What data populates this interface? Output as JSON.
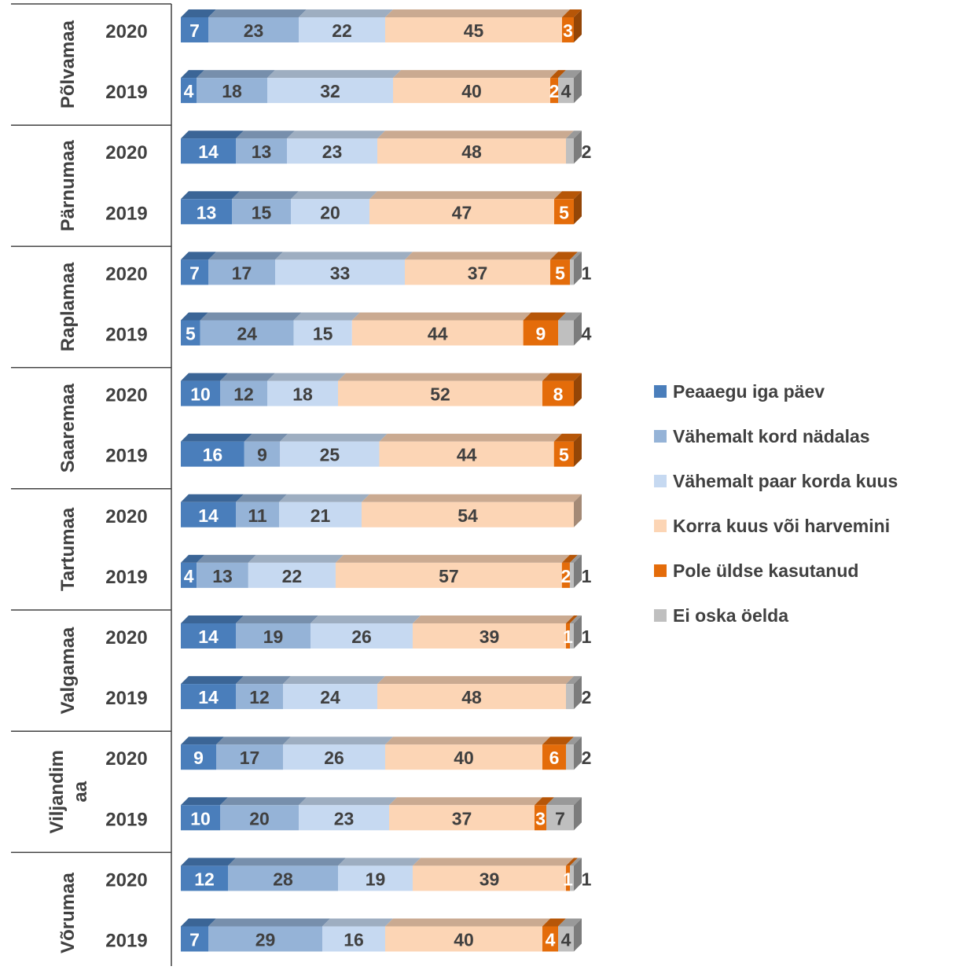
{
  "chart_data": {
    "type": "bar",
    "orientation": "horizontal",
    "stacked": true,
    "percent_stacked": true,
    "style": "3d",
    "grid": false,
    "legend_position": "right",
    "series": [
      {
        "name": "Peaaegu iga päev",
        "color": "#4a7ebb"
      },
      {
        "name": "Vähemalt kord nädalas",
        "color": "#95b3d7"
      },
      {
        "name": "Vähemalt paar korda kuus",
        "color": "#c6d9f1"
      },
      {
        "name": "Korra kuus või harvemini",
        "color": "#fcd5b5"
      },
      {
        "name": "Pole üldse kasutanud",
        "color": "#e46c0a"
      },
      {
        "name": "Ei oska öelda",
        "color": "#bfbfbf"
      }
    ],
    "groups": [
      {
        "name": "Põlvamaa",
        "rows": [
          {
            "year": "2020",
            "values": [
              7,
              23,
              22,
              45,
              3,
              0
            ]
          },
          {
            "year": "2019",
            "values": [
              4,
              18,
              32,
              40,
              2,
              4
            ]
          }
        ]
      },
      {
        "name": "Pärnumaa",
        "rows": [
          {
            "year": "2020",
            "values": [
              14,
              13,
              23,
              48,
              0,
              2
            ]
          },
          {
            "year": "2019",
            "values": [
              13,
              15,
              20,
              47,
              5,
              0
            ]
          }
        ]
      },
      {
        "name": "Raplamaa",
        "rows": [
          {
            "year": "2020",
            "values": [
              7,
              17,
              33,
              37,
              5,
              1
            ]
          },
          {
            "year": "2019",
            "values": [
              5,
              24,
              15,
              44,
              9,
              4
            ]
          }
        ]
      },
      {
        "name": "Saaremaa",
        "rows": [
          {
            "year": "2020",
            "values": [
              10,
              12,
              18,
              52,
              8,
              0
            ]
          },
          {
            "year": "2019",
            "values": [
              16,
              9,
              25,
              44,
              5,
              0
            ]
          }
        ]
      },
      {
        "name": "Tartumaa",
        "rows": [
          {
            "year": "2020",
            "values": [
              14,
              11,
              21,
              54,
              0,
              0
            ]
          },
          {
            "year": "2019",
            "values": [
              4,
              13,
              22,
              57,
              2,
              1
            ]
          }
        ]
      },
      {
        "name": "Valgamaa",
        "rows": [
          {
            "year": "2020",
            "values": [
              14,
              19,
              26,
              39,
              1,
              1
            ]
          },
          {
            "year": "2019",
            "values": [
              14,
              12,
              24,
              48,
              0,
              2
            ]
          }
        ]
      },
      {
        "name": "Viljandim\naa",
        "rows": [
          {
            "year": "2020",
            "values": [
              9,
              17,
              26,
              40,
              6,
              2
            ]
          },
          {
            "year": "2019",
            "values": [
              10,
              20,
              23,
              37,
              3,
              7
            ]
          }
        ]
      },
      {
        "name": "Võrumaa",
        "rows": [
          {
            "year": "2020",
            "values": [
              12,
              28,
              19,
              39,
              1,
              1
            ]
          },
          {
            "year": "2019",
            "values": [
              7,
              29,
              16,
              40,
              4,
              4
            ]
          }
        ]
      }
    ]
  }
}
